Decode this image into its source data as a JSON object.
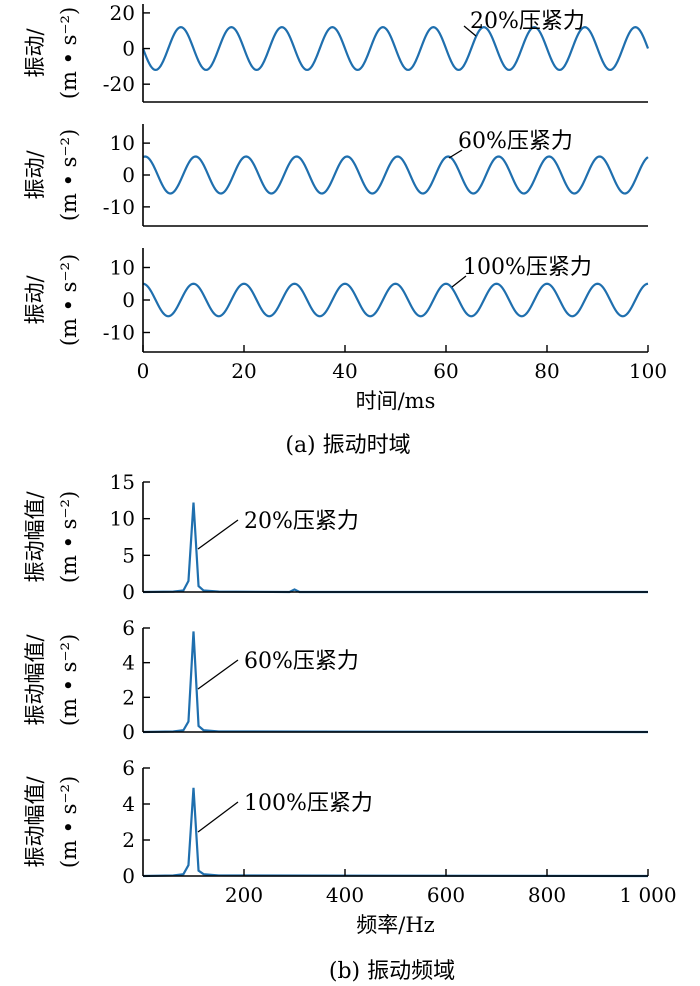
{
  "figure": {
    "part_a_caption": "(a)  振动时域",
    "part_b_caption": "(b)  振动频域",
    "line_color": "#1f6fae"
  },
  "chart_data": [
    {
      "type": "line",
      "panel": "a1",
      "ylabel": "振动/(m • s⁻²)",
      "xlabel": "",
      "xlim": [
        0,
        100
      ],
      "ylim": [
        -30,
        25
      ],
      "yticks": [
        -20,
        0,
        20
      ],
      "xticks": [],
      "annotation": "20%压紧力",
      "series": [
        {
          "frequency_hz": 100,
          "amplitude": 12,
          "phase_deg": 180,
          "sample_step_ms": 0.25
        }
      ]
    },
    {
      "type": "line",
      "panel": "a2",
      "ylabel": "振动/(m • s⁻²)",
      "xlabel": "",
      "xlim": [
        0,
        100
      ],
      "ylim": [
        -16,
        16
      ],
      "yticks": [
        -10,
        0,
        10
      ],
      "xticks": [],
      "annotation": "60%压紧力",
      "series": [
        {
          "frequency_hz": 100,
          "amplitude": 5.8,
          "phase_deg": 75,
          "sample_step_ms": 0.25
        }
      ]
    },
    {
      "type": "line",
      "panel": "a3",
      "ylabel": "振动/(m • s⁻²)",
      "xlabel": "时间/ms",
      "xlim": [
        0,
        100
      ],
      "ylim": [
        -16,
        16
      ],
      "yticks": [
        -10,
        0,
        10
      ],
      "xticks": [
        0,
        20,
        40,
        60,
        80,
        100
      ],
      "annotation": "100%压紧力",
      "series": [
        {
          "frequency_hz": 100,
          "amplitude": 5,
          "phase_deg": 90,
          "sample_step_ms": 0.25
        }
      ]
    },
    {
      "type": "line",
      "panel": "b1",
      "ylabel": "振动幅值/(m • s⁻²)",
      "xlabel": "",
      "xlim": [
        0,
        1000
      ],
      "ylim": [
        0,
        15
      ],
      "yticks": [
        0,
        5,
        10,
        15
      ],
      "xticks": [],
      "annotation": "20%压紧力",
      "series": [
        {
          "x": [
            0,
            60,
            80,
            90,
            100,
            110,
            120,
            150,
            290,
            300,
            310,
            1000
          ],
          "y": [
            0,
            0.05,
            0.2,
            1.5,
            12.2,
            0.8,
            0.2,
            0.05,
            0,
            0.35,
            0,
            0
          ]
        }
      ]
    },
    {
      "type": "line",
      "panel": "b2",
      "ylabel": "振动幅值/(m • s⁻²)",
      "xlabel": "",
      "xlim": [
        0,
        1000
      ],
      "ylim": [
        0,
        6
      ],
      "yticks": [
        0,
        2,
        4,
        6
      ],
      "xticks": [],
      "annotation": "60%压紧力",
      "series": [
        {
          "x": [
            0,
            60,
            80,
            90,
            100,
            110,
            120,
            150,
            1000
          ],
          "y": [
            0,
            0.03,
            0.1,
            0.6,
            5.8,
            0.35,
            0.1,
            0.03,
            0
          ]
        }
      ]
    },
    {
      "type": "line",
      "panel": "b3",
      "ylabel": "振动幅值/(m • s⁻²)",
      "xlabel": "频率/Hz",
      "xlim": [
        0,
        1000
      ],
      "ylim": [
        0,
        6
      ],
      "yticks": [
        0,
        2,
        4,
        6
      ],
      "xticks": [
        200,
        400,
        600,
        800,
        1000
      ],
      "xtick_labels": [
        "200",
        "400",
        "600",
        "800",
        "1 000"
      ],
      "annotation": "100%压紧力",
      "series": [
        {
          "x": [
            0,
            60,
            80,
            90,
            100,
            110,
            120,
            150,
            1000
          ],
          "y": [
            0,
            0.03,
            0.1,
            0.6,
            4.9,
            0.3,
            0.1,
            0.03,
            0
          ]
        }
      ]
    }
  ]
}
